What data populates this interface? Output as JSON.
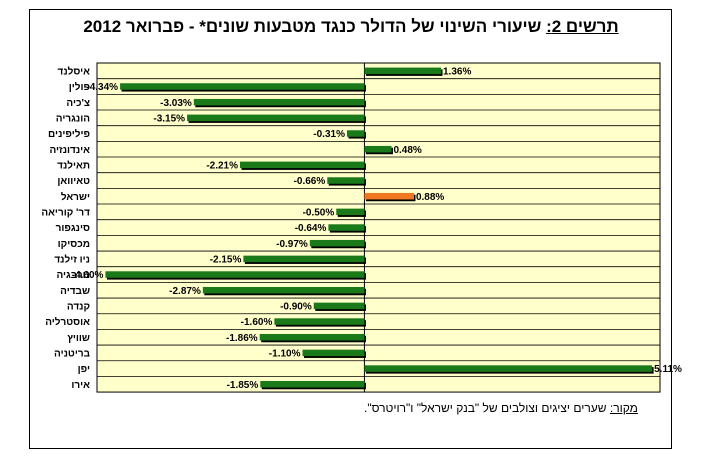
{
  "title": {
    "label": "תרשים 2:",
    "text": " שיעורי השינוי של הדולר כנגד מטבעות שונים* - פברואר 2012"
  },
  "source": {
    "label": "מקור:",
    "text": " שערים יציגים וצולבים של \"בנק ישראל\" ו\"רויטרס\"."
  },
  "chart_data": {
    "type": "bar",
    "orientation": "horizontal",
    "categories": [
      "איסלנד",
      "פולין",
      "צ'כיה",
      "הונגריה",
      "פיליפינים",
      "אינדונזיה",
      "תאילנד",
      "טאיוואן",
      "ישראל",
      "דר' קוריאה",
      "סינגפור",
      "מכסיקו",
      "ניו זילנד",
      "נורבגיה",
      "שבדיה",
      "קנדה",
      "אוסטרליה",
      "שוויץ",
      "בריטניה",
      "יפן",
      "אירו"
    ],
    "values": [
      1.36,
      -4.34,
      -3.03,
      -3.15,
      -0.31,
      0.48,
      -2.21,
      -0.66,
      0.88,
      -0.5,
      -0.64,
      -0.97,
      -2.15,
      -4.6,
      -2.87,
      -0.9,
      -1.6,
      -1.86,
      -1.1,
      5.11,
      -1.85
    ],
    "value_labels": [
      "1.36%",
      "-4.34%",
      "-3.03%",
      "-3.15%",
      "-0.31%",
      "0.48%",
      "-2.21%",
      "-0.66%",
      "0.88%",
      "-0.50%",
      "-0.64%",
      "-0.97%",
      "-2.15%",
      "-4.60%",
      "-2.87%",
      "-0.90%",
      "-1.60%",
      "-1.86%",
      "-1.10%",
      "5.11%",
      "-1.85%"
    ],
    "highlight_category": "ישראל",
    "xlim": [
      -4.75,
      5.25
    ],
    "colors": {
      "bar": "#1a7a1a",
      "highlight": "#f07820",
      "background": "#ffffcc",
      "grid": "#000000"
    },
    "grid": true,
    "legend": false
  }
}
